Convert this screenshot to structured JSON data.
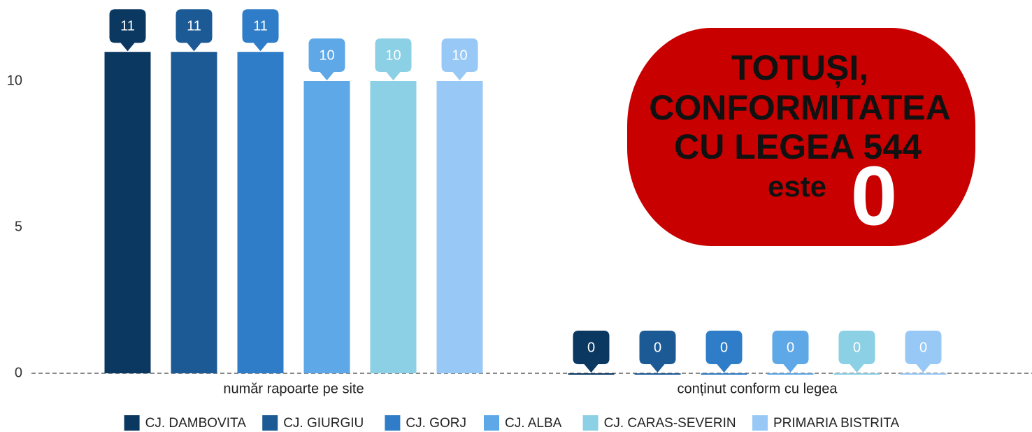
{
  "chart_data": {
    "type": "bar",
    "categories": [
      "număr rapoarte pe site",
      "conținut conform cu legea"
    ],
    "series": [
      {
        "name": "CJ. DAMBOVITA",
        "color": "#0b3861",
        "values": [
          11,
          0
        ]
      },
      {
        "name": "CJ. GIURGIU",
        "color": "#1c5a96",
        "values": [
          11,
          0
        ]
      },
      {
        "name": "CJ. GORJ",
        "color": "#2f7dc8",
        "values": [
          11,
          0
        ]
      },
      {
        "name": "CJ. ALBA",
        "color": "#5ea8e8",
        "values": [
          10,
          0
        ]
      },
      {
        "name": "CJ. CARAS-SEVERIN",
        "color": "#8bd0e4",
        "values": [
          10,
          0
        ]
      },
      {
        "name": "PRIMARIA BISTRITA",
        "color": "#98c8f5",
        "values": [
          10,
          0
        ]
      }
    ],
    "ylim": [
      0,
      12
    ],
    "yticks": [
      0,
      5,
      10
    ],
    "legend": "bottom",
    "annotation": {
      "lines": [
        "TOTUȘI,",
        "CONFORMITATEA",
        "CU LEGEA 544",
        "este",
        "0"
      ],
      "color": "#c80000"
    }
  }
}
